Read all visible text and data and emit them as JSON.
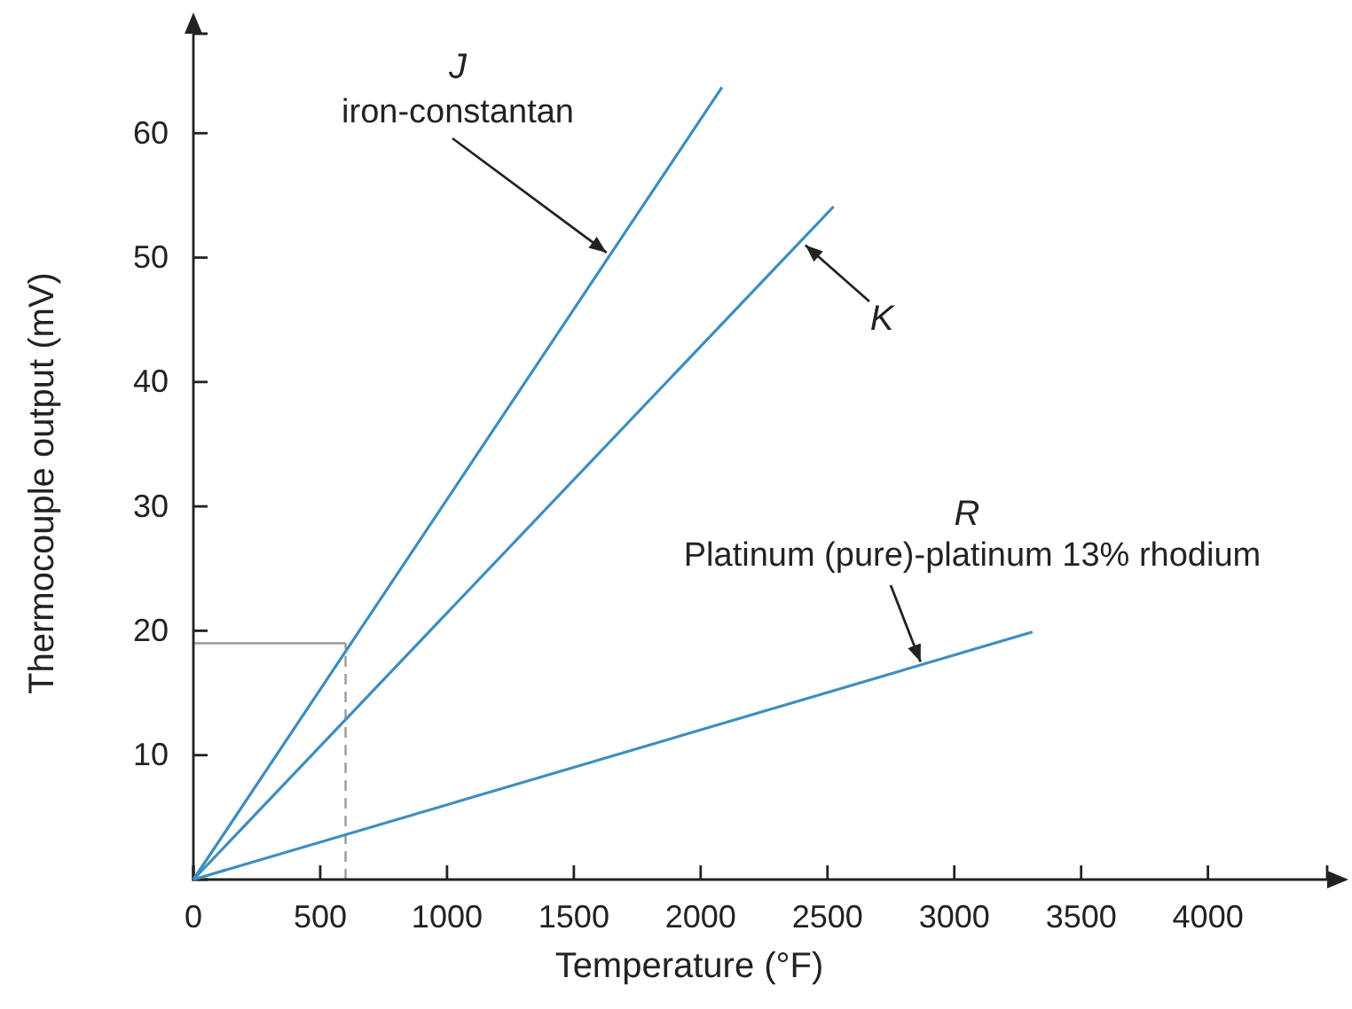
{
  "chart_data": {
    "type": "line",
    "xlabel": "Temperature (°F)",
    "ylabel": "Thermocouple output (mV)",
    "xlim": [
      0,
      4470
    ],
    "ylim": [
      0,
      68
    ],
    "xticks": [
      0,
      500,
      1000,
      1500,
      2000,
      2500,
      3000,
      3500,
      4000
    ],
    "yticks": [
      10,
      20,
      30,
      40,
      50,
      60
    ],
    "grid": false,
    "legend": false,
    "marker": "none",
    "line_style": "solid",
    "series": [
      {
        "color": "#3f8dbf",
        "x": [
          0,
          2084
        ],
        "values": [
          0,
          63.7
        ]
      },
      {
        "color": "#3f8dbf",
        "x": [
          0,
          2524
        ],
        "values": [
          0,
          54.1
        ]
      },
      {
        "color": "#3f8dbf",
        "x": [
          0,
          3308
        ],
        "values": [
          0,
          19.9
        ]
      }
    ],
    "ref_lines": [
      {
        "axis": "x",
        "value": 600,
        "color": "#9a9a9a",
        "line_style": "dashed"
      },
      {
        "axis": "y",
        "value": 19,
        "color": "#9a9a9a",
        "line_style": "solid"
      }
    ],
    "annotations": [
      "J",
      {
        "text": "iron-constantan",
        "x": 1629,
        "y": 50.4
      },
      {
        "text": "K",
        "x": 2413,
        "y": 51
      },
      "R",
      {
        "text": "Platinum (pure)-platinum 13% rhodium",
        "x": 2867,
        "y": 17.5
      }
    ]
  }
}
